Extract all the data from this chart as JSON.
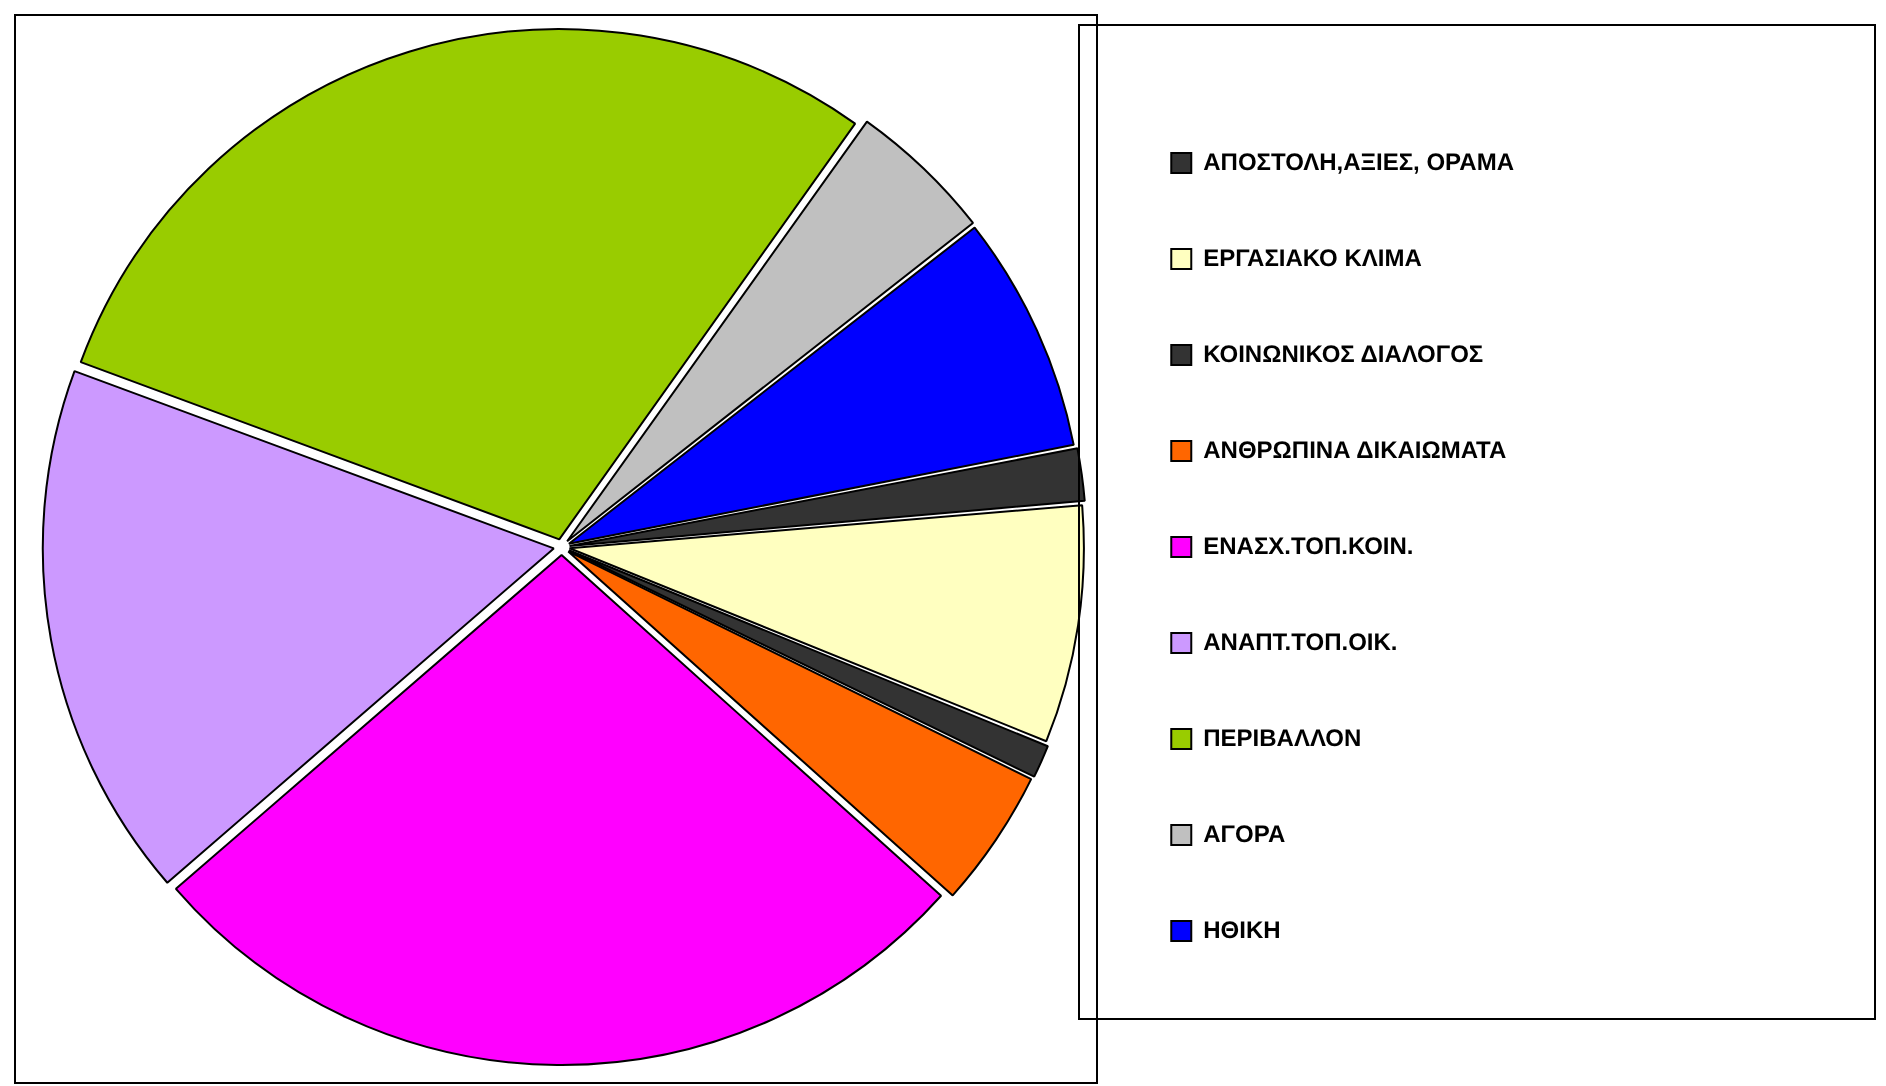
{
  "chart_data": {
    "type": "pie",
    "categories": [
      "ΑΠΟΣΤΟΛΗ,ΑΞΙΕΣ, ΟΡΑΜΑ",
      "ΕΡΓΑΣΙΑΚΟ ΚΛΙΜΑ",
      "ΚΟΙΝΩΝΙΚΟΣ ΔΙΑΛΟΓΟΣ",
      "ΑΝΘΡΩΠΙΝΑ ΔΙΚΑΙΩΜΑΤΑ",
      "ΕΝΑΣΧ.ΤΟΠ.ΚΟΙΝ.",
      "ΑΝΑΠΤ.ΤΟΠ.ΟΙΚ.",
      "ΠΕΡΙΒΑΛΛΟΝ",
      "ΑΓΟΡΑ",
      "ΗΘΙΚΗ"
    ],
    "values": [
      1.7,
      7.5,
      1.1,
      4.4,
      27,
      17,
      29.2,
      4.6,
      7.5
    ],
    "colors": [
      "#333333",
      "#ffffc0",
      "#333333",
      "#ff6600",
      "#ff00ff",
      "#cc99ff",
      "#99cc00",
      "#c0c0c0",
      "#0000ff"
    ],
    "legend": "right"
  }
}
